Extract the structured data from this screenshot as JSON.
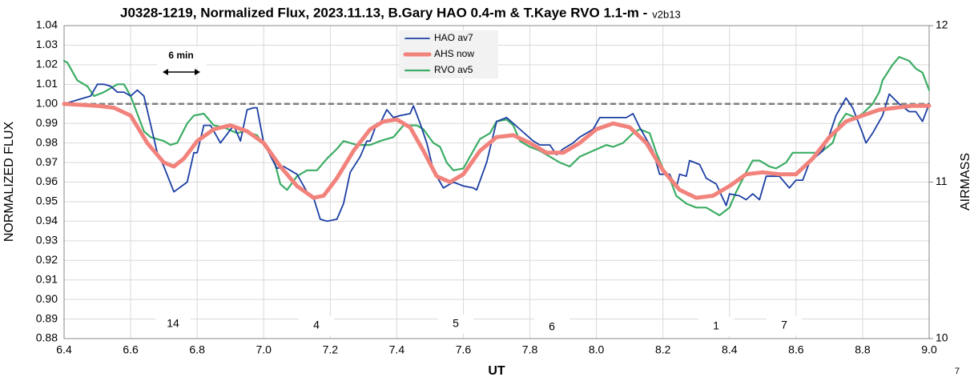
{
  "chart_data": {
    "type": "line",
    "title": "J0328-1219, Normalized Flux, 2023.11.13, B.Gary HAO 0.4-m & T.Kaye RVO 1.1-m -",
    "title_version": "v2b13",
    "xlabel": "UT",
    "ylabel": "NORMALIZED FLUX",
    "y2label": "AIRMASS",
    "xlim": [
      6.4,
      9.0
    ],
    "xticks": [
      6.4,
      6.6,
      6.8,
      {
        "value": 7,
        "label": "7.0"
      },
      7.2,
      7.4,
      7.6,
      7.8,
      {
        "value": 8,
        "label": "8.0"
      },
      8.2,
      8.4,
      8.6,
      8.8,
      {
        "value": 9,
        "label": "9.0"
      }
    ],
    "ylim": [
      0.88,
      1.04
    ],
    "yticks": [
      0.88,
      0.89,
      {
        "value": 0.9,
        "label": "0.90"
      },
      0.91,
      0.92,
      0.93,
      0.94,
      0.95,
      0.96,
      0.97,
      0.98,
      0.99,
      {
        "value": 1,
        "label": "1.00"
      },
      1.01,
      1.02,
      1.03,
      1.04
    ],
    "y2lim": [
      10,
      12
    ],
    "y2ticks": [
      10,
      11,
      12
    ],
    "grid": true,
    "reference_line": 1,
    "legend": "top-center",
    "scale_bar_label": "6 min",
    "annotations": [
      "14",
      "4",
      "5",
      "6",
      "1",
      "7"
    ],
    "footer_note": "7",
    "series": [
      {
        "name": "HAO av7",
        "color": "#1c3fa3",
        "width": 1.8,
        "x": [
          6.4,
          6.42,
          6.44,
          6.46,
          6.48,
          6.5,
          6.52,
          6.54,
          6.56,
          6.58,
          6.6,
          6.62,
          6.64,
          6.68,
          6.7,
          6.73,
          6.77,
          6.79,
          6.8,
          6.82,
          6.84,
          6.87,
          6.91,
          6.93,
          6.95,
          6.97,
          6.98,
          7.0,
          7.04,
          7.06,
          7.09,
          7.1,
          7.13,
          7.15,
          7.17,
          7.19,
          7.22,
          7.24,
          7.26,
          7.29,
          7.31,
          7.32,
          7.34,
          7.35,
          7.37,
          7.39,
          7.41,
          7.44,
          7.45,
          7.47,
          7.49,
          7.51,
          7.53,
          7.54,
          7.57,
          7.6,
          7.63,
          7.64,
          7.67,
          7.7,
          7.73,
          7.77,
          7.81,
          7.83,
          7.86,
          7.88,
          7.9,
          7.93,
          7.95,
          7.99,
          8.01,
          8.05,
          8.09,
          8.11,
          8.13,
          8.17,
          8.19,
          8.22,
          8.24,
          8.25,
          8.27,
          8.28,
          8.31,
          8.33,
          8.36,
          8.39,
          8.4,
          8.43,
          8.45,
          8.47,
          8.49,
          8.51,
          8.55,
          8.58,
          8.6,
          8.62,
          8.64,
          8.68,
          8.7,
          8.72,
          8.75,
          8.77,
          8.8,
          8.81,
          8.83,
          8.86,
          8.88,
          8.91,
          8.94,
          8.96,
          8.98,
          9.0
        ],
        "values": [
          1.0,
          1.001,
          1.002,
          1.003,
          1.004,
          1.01,
          1.01,
          1.009,
          1.006,
          1.006,
          1.004,
          1.007,
          1.004,
          0.975,
          0.968,
          0.955,
          0.96,
          0.975,
          0.975,
          0.989,
          0.989,
          0.98,
          0.989,
          0.981,
          0.997,
          0.998,
          0.998,
          0.98,
          0.967,
          0.968,
          0.965,
          0.964,
          0.955,
          0.952,
          0.941,
          0.94,
          0.941,
          0.949,
          0.965,
          0.973,
          0.981,
          0.981,
          0.99,
          0.99,
          0.997,
          0.993,
          0.994,
          0.995,
          0.999,
          0.99,
          0.98,
          0.966,
          0.96,
          0.957,
          0.96,
          0.958,
          0.957,
          0.956,
          0.97,
          0.991,
          0.993,
          0.987,
          0.981,
          0.979,
          0.979,
          0.974,
          0.977,
          0.98,
          0.983,
          0.987,
          0.993,
          0.993,
          0.993,
          0.995,
          0.988,
          0.976,
          0.964,
          0.964,
          0.957,
          0.964,
          0.963,
          0.971,
          0.969,
          0.962,
          0.959,
          0.948,
          0.954,
          0.953,
          0.951,
          0.954,
          0.951,
          0.963,
          0.963,
          0.957,
          0.961,
          0.961,
          0.97,
          0.976,
          0.984,
          0.994,
          1.003,
          0.998,
          0.985,
          0.98,
          0.985,
          0.994,
          1.005,
          1.0,
          0.996,
          0.996,
          0.991,
          1.0
        ]
      },
      {
        "name": "AHS now",
        "color": "#f2827c",
        "width": 5,
        "x": [
          6.4,
          6.5,
          6.55,
          6.6,
          6.65,
          6.7,
          6.73,
          6.76,
          6.8,
          6.85,
          6.9,
          6.95,
          7.0,
          7.05,
          7.1,
          7.15,
          7.18,
          7.22,
          7.27,
          7.32,
          7.36,
          7.4,
          7.44,
          7.48,
          7.52,
          7.56,
          7.6,
          7.65,
          7.7,
          7.75,
          7.8,
          7.85,
          7.9,
          7.95,
          8.0,
          8.05,
          8.1,
          8.15,
          8.2,
          8.25,
          8.3,
          8.35,
          8.4,
          8.45,
          8.5,
          8.55,
          8.6,
          8.65,
          8.7,
          8.75,
          8.8,
          8.85,
          8.9,
          8.95,
          9.0
        ],
        "values": [
          1.0,
          0.999,
          0.998,
          0.994,
          0.98,
          0.97,
          0.968,
          0.972,
          0.981,
          0.987,
          0.989,
          0.986,
          0.98,
          0.968,
          0.958,
          0.952,
          0.953,
          0.962,
          0.976,
          0.987,
          0.991,
          0.992,
          0.988,
          0.976,
          0.963,
          0.96,
          0.964,
          0.976,
          0.983,
          0.984,
          0.98,
          0.975,
          0.975,
          0.98,
          0.987,
          0.99,
          0.988,
          0.98,
          0.966,
          0.956,
          0.952,
          0.953,
          0.958,
          0.964,
          0.965,
          0.964,
          0.964,
          0.972,
          0.983,
          0.991,
          0.994,
          0.997,
          0.998,
          0.999,
          0.999
        ]
      },
      {
        "name": "RVO av5",
        "color": "#3cad64",
        "width": 2.2,
        "x": [
          6.4,
          6.41,
          6.44,
          6.47,
          6.49,
          6.52,
          6.54,
          6.56,
          6.58,
          6.6,
          6.62,
          6.64,
          6.66,
          6.7,
          6.72,
          6.74,
          6.77,
          6.79,
          6.82,
          6.85,
          6.88,
          6.92,
          6.94,
          6.98,
          7.0,
          7.03,
          7.05,
          7.07,
          7.1,
          7.13,
          7.16,
          7.19,
          7.22,
          7.24,
          7.28,
          7.32,
          7.35,
          7.39,
          7.42,
          7.46,
          7.48,
          7.51,
          7.53,
          7.55,
          7.57,
          7.6,
          7.63,
          7.65,
          7.68,
          7.7,
          7.73,
          7.75,
          7.77,
          7.8,
          7.83,
          7.86,
          7.89,
          7.92,
          7.95,
          7.99,
          8.03,
          8.05,
          8.08,
          8.11,
          8.13,
          8.16,
          8.18,
          8.2,
          8.22,
          8.24,
          8.27,
          8.3,
          8.33,
          8.35,
          8.37,
          8.4,
          8.42,
          8.45,
          8.47,
          8.49,
          8.52,
          8.54,
          8.57,
          8.59,
          8.63,
          8.66,
          8.68,
          8.71,
          8.73,
          8.75,
          8.78,
          8.8,
          8.83,
          8.85,
          8.86,
          8.89,
          8.91,
          8.94,
          8.96,
          8.98,
          9.0
        ],
        "values": [
          1.022,
          1.021,
          1.012,
          1.009,
          1.004,
          1.006,
          1.008,
          1.01,
          1.01,
          1.004,
          0.995,
          0.986,
          0.983,
          0.981,
          0.979,
          0.98,
          0.99,
          0.994,
          0.995,
          0.989,
          0.988,
          0.985,
          0.986,
          0.984,
          0.979,
          0.972,
          0.959,
          0.956,
          0.963,
          0.966,
          0.966,
          0.972,
          0.977,
          0.981,
          0.979,
          0.979,
          0.981,
          0.983,
          0.989,
          0.989,
          0.987,
          0.98,
          0.978,
          0.97,
          0.966,
          0.967,
          0.976,
          0.982,
          0.985,
          0.991,
          0.992,
          0.989,
          0.981,
          0.978,
          0.976,
          0.973,
          0.97,
          0.968,
          0.973,
          0.976,
          0.979,
          0.978,
          0.98,
          0.985,
          0.987,
          0.985,
          0.975,
          0.967,
          0.962,
          0.953,
          0.949,
          0.947,
          0.947,
          0.945,
          0.943,
          0.947,
          0.955,
          0.965,
          0.971,
          0.971,
          0.968,
          0.967,
          0.97,
          0.975,
          0.975,
          0.975,
          0.976,
          0.98,
          0.99,
          0.995,
          0.993,
          0.995,
          1.0,
          1.006,
          1.012,
          1.02,
          1.024,
          1.022,
          1.018,
          1.016,
          1.007
        ]
      }
    ]
  }
}
